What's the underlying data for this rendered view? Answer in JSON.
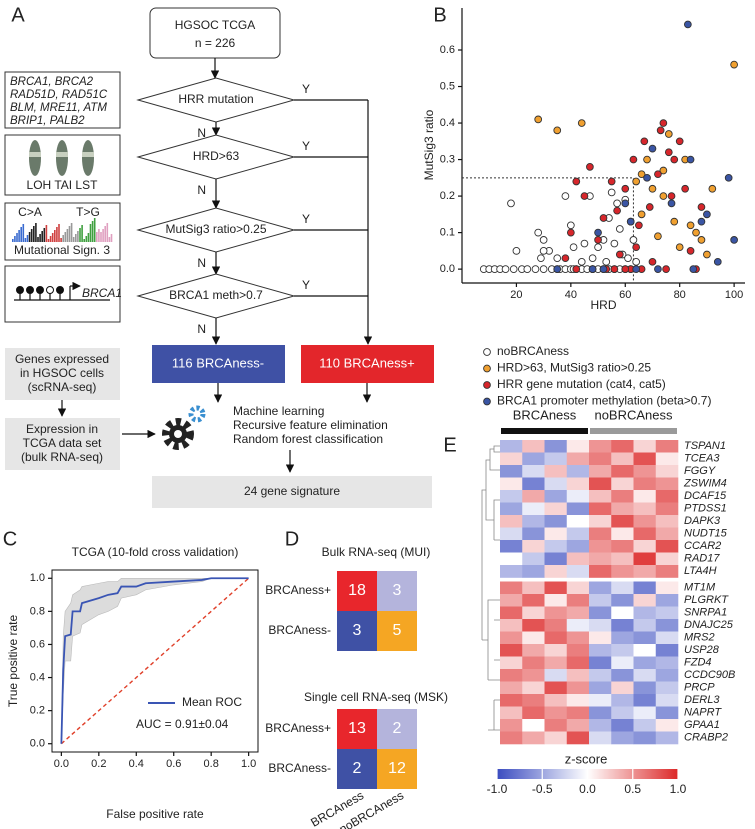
{
  "panel_labels": [
    "A",
    "B",
    "C",
    "D",
    "E"
  ],
  "panel_a": {
    "start": [
      "HGSOC TCGA",
      "n = 226"
    ],
    "decisions": [
      "HRR mutation",
      "HRD>63",
      "MutSig3 ratio>0.25",
      "BRCA1 meth>0.7"
    ],
    "yes": "Y",
    "no": "N",
    "outcomes": [
      "116 BRCAness-",
      "110 BRCAness+"
    ],
    "gene_box": [
      "BRCA1, BRCA2",
      "RAD51D, RAD51C",
      "BLM, MRE11, ATM",
      "BRIP1, PALB2"
    ],
    "cnv_box": "LOH TAI LST",
    "sig_box": [
      "C>A",
      "T>G",
      "Mutational Sign. 3"
    ],
    "meth_box": "BRCA1",
    "sc_box": [
      "Genes expressed",
      "in HGSOC cells",
      "(scRNA-seq)"
    ],
    "bulk_box": [
      "Expression in",
      "TCGA data set",
      "(bulk RNA-seq)"
    ],
    "ml": [
      "Machine learning",
      "Recursive feature elimination",
      "Random forest classification"
    ],
    "signature": "24 gene signature"
  },
  "chart_data": [
    {
      "type": "scatter",
      "x_label": "HRD",
      "y_label": "MutSig3 ratio",
      "xlim": [
        0,
        104
      ],
      "ylim": [
        -0.038,
        0.715
      ],
      "xticks": [
        20,
        40,
        60,
        80,
        100
      ],
      "yticks": [
        {
          "value": 0,
          "label": "0.0"
        },
        0.1,
        0.2,
        0.3,
        0.4,
        0.5,
        0.6
      ],
      "thresholds": {
        "x": 63,
        "y": 0.25
      },
      "series": [
        {
          "name": "noBRCAness",
          "color": "#ffffff",
          "x": [
            8,
            10,
            12,
            14,
            16,
            19,
            22,
            24,
            27,
            30,
            33,
            35,
            36,
            38,
            40,
            41,
            42,
            44,
            46,
            48,
            50,
            52,
            54,
            56,
            58,
            60,
            62,
            18,
            20,
            28,
            30,
            29,
            32,
            35,
            38,
            40,
            41,
            44,
            45,
            47,
            48,
            50,
            52,
            53,
            55,
            56,
            57,
            58,
            59,
            60,
            61,
            62,
            63,
            64,
            30,
            54
          ],
          "values": [
            0,
            0,
            0,
            0,
            0,
            0,
            0,
            0,
            0,
            0,
            0,
            0,
            0,
            0,
            0,
            0,
            0,
            0,
            0,
            0,
            0,
            0,
            0,
            0,
            0,
            0,
            0,
            0.18,
            0.05,
            0.1,
            0.08,
            0.03,
            0.05,
            0.03,
            0.2,
            0.12,
            0.06,
            0.02,
            0.07,
            0.2,
            0.03,
            0.06,
            0.08,
            0.02,
            0.21,
            0.07,
            0.18,
            0.11,
            0.04,
            0.19,
            0.03,
            0.13,
            0.08,
            0.02,
            0.05,
            0.14
          ]
        },
        {
          "name": "HRD>63, MutSig3 ratio>0.25",
          "color": "#f0a030",
          "x": [
            28,
            35,
            44,
            66,
            68,
            70,
            72,
            74,
            76,
            78,
            80,
            82,
            84,
            86,
            88,
            92,
            100,
            74,
            66,
            90,
            64
          ],
          "values": [
            0.41,
            0.38,
            0.4,
            0.26,
            0.3,
            0.22,
            0.09,
            0.27,
            0.37,
            0.13,
            0.06,
            0.3,
            0.12,
            0.1,
            0.08,
            0.22,
            0.56,
            0.2,
            0.15,
            0.04,
            0.24
          ]
        },
        {
          "name": "HRR gene mutation (cat4, cat5)",
          "color": "#d7262b",
          "x": [
            38,
            40,
            42,
            45,
            47,
            48,
            50,
            52,
            53,
            55,
            57,
            58,
            60,
            62,
            63,
            65,
            66,
            67,
            69,
            70,
            72,
            73,
            74,
            75,
            76,
            77,
            78,
            80,
            82,
            84,
            86,
            88,
            42,
            60,
            56,
            64
          ],
          "values": [
            0.03,
            0.1,
            0,
            0.2,
            0.28,
            0,
            0.08,
            0.14,
            0,
            0.24,
            0.16,
            0.04,
            0.22,
            0,
            0.3,
            0.12,
            0,
            0.35,
            0.17,
            0.02,
            0.26,
            0.38,
            0.4,
            0,
            0.32,
            0.2,
            0.3,
            0.35,
            0.22,
            0.05,
            0,
            0.17,
            0.24,
            0,
            0,
            0.06
          ]
        },
        {
          "name": "BRCA1 promoter methylation (beta>0.7)",
          "color": "#3a55a4",
          "x": [
            35,
            48,
            50,
            52,
            60,
            62,
            64,
            68,
            70,
            72,
            77,
            83,
            84,
            85,
            88,
            90,
            94,
            100,
            98
          ],
          "values": [
            0,
            0,
            0.1,
            0,
            0.18,
            0.13,
            0,
            0.25,
            0.33,
            0,
            0.18,
            0.67,
            0.3,
            0,
            0.13,
            0.15,
            0.02,
            0.08,
            0.25
          ]
        }
      ]
    },
    {
      "type": "line",
      "title": "TCGA  (10-fold cross validation)",
      "x_label": "False positive rate",
      "y_label": "True positive rate",
      "xlim": [
        -0.05,
        1.05
      ],
      "ylim": [
        -0.05,
        1.05
      ],
      "xticks": [
        {
          "value": 0,
          "label": "0.0"
        },
        0.2,
        0.4,
        0.6,
        0.8,
        {
          "value": 1,
          "label": "1.0"
        }
      ],
      "yticks": [
        {
          "value": 0,
          "label": "0.0"
        },
        0.2,
        0.4,
        0.6,
        0.8,
        {
          "value": 1,
          "label": "1.0"
        }
      ],
      "x": [
        0,
        0.01,
        0.02,
        0.05,
        0.06,
        0.1,
        0.11,
        0.2,
        0.25,
        0.3,
        0.32,
        0.4,
        0.45,
        0.6,
        0.75,
        0.8,
        1.0
      ],
      "series": [
        {
          "name": "Mean ROC",
          "color": "#3a55b4",
          "values": [
            0,
            0.45,
            0.65,
            0.66,
            0.8,
            0.8,
            0.85,
            0.88,
            0.9,
            0.91,
            0.95,
            0.95,
            0.97,
            0.98,
            0.99,
            1.0,
            1.0
          ]
        }
      ],
      "band_upper": [
        0,
        0.65,
        0.8,
        0.85,
        0.9,
        0.93,
        0.95,
        0.97,
        0.98,
        0.98,
        1.0,
        1.0,
        1.0,
        1.0,
        1.0,
        1.0,
        1.0
      ],
      "band_lower": [
        0,
        0.3,
        0.5,
        0.5,
        0.65,
        0.67,
        0.72,
        0.78,
        0.8,
        0.83,
        0.88,
        0.9,
        0.93,
        0.96,
        0.98,
        1.0,
        1.0
      ],
      "band_color": "#dcdcdc",
      "chance": {
        "x": [
          0,
          1
        ],
        "y": [
          0,
          1
        ],
        "color": "#e0402a"
      },
      "annotation": "AUC = 0.91±0.04"
    },
    {
      "type": "matrix",
      "rows": [
        "BRCAness+",
        "BRCAness-"
      ],
      "columns": [
        "BRCAness",
        "noBRCAness"
      ],
      "tables": [
        {
          "title": "Bulk RNA-seq (MUI)",
          "values": [
            [
              18,
              3
            ],
            [
              3,
              5
            ]
          ]
        },
        {
          "title": "Single cell RNA-seq (MSK)",
          "values": [
            [
              13,
              2
            ],
            [
              2,
              12
            ]
          ]
        }
      ],
      "cell_colors": [
        [
          "#e8262c",
          "#b4b4dc"
        ],
        [
          "#3f51a5",
          "#f5a623"
        ]
      ]
    },
    {
      "type": "heatmap",
      "colorbar_label": "z-score",
      "clim": [
        -1,
        1
      ],
      "colorbar_ticks": [
        {
          "value": -1,
          "label": "-1.0"
        },
        -0.5,
        {
          "value": 0,
          "label": "0.0"
        },
        0.5,
        {
          "value": 1,
          "label": "1.0"
        }
      ],
      "genes": [
        "TSPAN1",
        "TCEA3",
        "FGGY",
        "ZSWIM4",
        "DCAF15",
        "PTDSS1",
        "DAPK3",
        "NUDT15",
        "CCAR2",
        "RAD17",
        "LTA4H",
        "MT1M",
        "PLGRKT",
        "SNRPA1",
        "DNAJC25",
        "MRS2",
        "USP28",
        "FZD4",
        "CCDC90B",
        "PRCP",
        "DERL3",
        "NAPRT",
        "GPAA1",
        "CRABP2"
      ],
      "groups": [
        {
          "name": "BRCAness",
          "color": "#111111",
          "values": [
            [
              -0.4,
              0.3,
              -0.6,
              0.1
            ],
            [
              0.2,
              -0.5,
              -0.3,
              0.4
            ],
            [
              -0.6,
              -0.2,
              0.3,
              -0.4
            ],
            [
              0.1,
              -0.7,
              -0.2,
              0.2
            ],
            [
              -0.3,
              0.4,
              -0.5,
              -0.1
            ],
            [
              -0.5,
              -0.1,
              0.2,
              -0.6
            ],
            [
              0.3,
              -0.4,
              -0.6,
              0.0
            ],
            [
              -0.2,
              -0.6,
              0.1,
              -0.3
            ],
            [
              -0.7,
              0.2,
              -0.3,
              -0.5
            ],
            [
              0.0,
              -0.3,
              -0.7,
              0.3
            ],
            [
              -0.4,
              -0.5,
              0.2,
              -0.2
            ],
            [
              0.6,
              0.3,
              0.8,
              0.2
            ],
            [
              0.4,
              0.7,
              0.1,
              0.6
            ],
            [
              0.7,
              0.2,
              0.5,
              0.4
            ],
            [
              0.3,
              0.8,
              0.6,
              -0.1
            ],
            [
              0.5,
              0.1,
              0.7,
              0.5
            ],
            [
              0.8,
              0.4,
              0.2,
              0.6
            ],
            [
              0.2,
              0.6,
              0.4,
              0.7
            ],
            [
              0.6,
              0.5,
              -0.2,
              0.3
            ],
            [
              0.4,
              0.2,
              0.8,
              0.5
            ],
            [
              0.7,
              0.6,
              0.3,
              0.1
            ],
            [
              0.3,
              0.7,
              0.5,
              0.6
            ],
            [
              0.5,
              0.0,
              0.6,
              0.4
            ],
            [
              0.6,
              0.4,
              0.2,
              0.8
            ]
          ]
        },
        {
          "name": "noBRCAness",
          "color": "#9a9a9a",
          "values": [
            [
              0.5,
              0.7,
              0.2,
              0.6
            ],
            [
              0.6,
              0.3,
              0.8,
              0.1
            ],
            [
              0.4,
              0.7,
              0.5,
              0.2
            ],
            [
              0.8,
              0.2,
              0.6,
              0.5
            ],
            [
              0.3,
              0.6,
              0.1,
              0.7
            ],
            [
              0.7,
              0.4,
              0.3,
              0.6
            ],
            [
              0.2,
              0.8,
              0.5,
              0.3
            ],
            [
              0.6,
              0.1,
              0.7,
              0.4
            ],
            [
              0.5,
              0.6,
              0.2,
              0.8
            ],
            [
              0.4,
              0.3,
              0.9,
              0.2
            ],
            [
              0.7,
              0.5,
              0.4,
              0.6
            ],
            [
              -0.5,
              -0.2,
              -0.7,
              0.1
            ],
            [
              -0.3,
              -0.6,
              0.2,
              -0.5
            ],
            [
              -0.6,
              0.0,
              -0.4,
              -0.3
            ],
            [
              -0.2,
              -0.7,
              -0.3,
              -0.6
            ],
            [
              0.1,
              -0.5,
              -0.6,
              -0.2
            ],
            [
              -0.4,
              -0.3,
              0.0,
              -0.7
            ],
            [
              -0.7,
              -0.1,
              -0.5,
              -0.4
            ],
            [
              -0.3,
              -0.6,
              -0.2,
              -0.5
            ],
            [
              -0.5,
              0.2,
              -0.6,
              -0.3
            ],
            [
              -0.1,
              -0.4,
              -0.7,
              -0.2
            ],
            [
              -0.6,
              -0.3,
              -0.1,
              -0.6
            ],
            [
              -0.4,
              -0.7,
              -0.3,
              0.1
            ],
            [
              -0.2,
              -0.5,
              -0.6,
              -0.4
            ]
          ]
        }
      ]
    }
  ]
}
